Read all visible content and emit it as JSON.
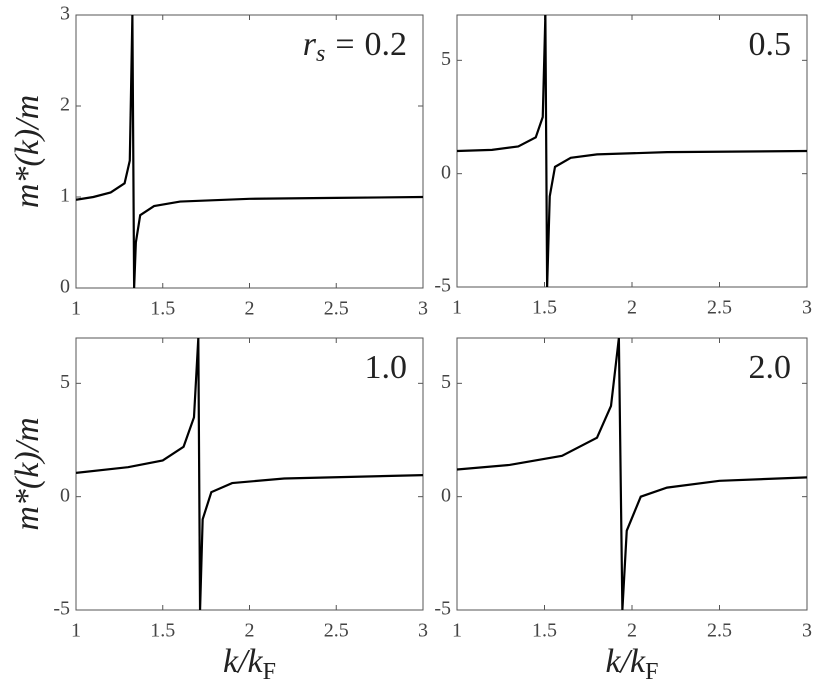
{
  "chart_data": [
    {
      "type": "line",
      "annotation_symbol": "r",
      "annotation_subscript": "s",
      "annotation_relation": "=",
      "annotation": "0.2",
      "ylabel": "m*(k)/m",
      "color": "#000000",
      "x": [
        1,
        1.1,
        1.2,
        1.28,
        1.31,
        1.325,
        1.335,
        1.345,
        1.37,
        1.45,
        1.6,
        2,
        2.5,
        3
      ],
      "values": [
        0.97,
        1.0,
        1.05,
        1.15,
        1.4,
        3,
        0,
        0.5,
        0.8,
        0.9,
        0.95,
        0.98,
        0.99,
        1.0
      ],
      "xlim": [
        1,
        3
      ],
      "xticks": [
        1,
        1.5,
        2,
        2.5,
        3
      ],
      "ylim": [
        0,
        3
      ],
      "yticks": [
        0,
        1,
        2,
        3
      ]
    },
    {
      "type": "line",
      "annotation": "0.5",
      "color": "#000000",
      "x": [
        1,
        1.2,
        1.35,
        1.45,
        1.49,
        1.505,
        1.515,
        1.53,
        1.56,
        1.65,
        1.8,
        2.2,
        3
      ],
      "values": [
        1.0,
        1.05,
        1.2,
        1.6,
        2.5,
        7,
        -5,
        -1,
        0.3,
        0.7,
        0.85,
        0.95,
        1.0
      ],
      "xlim": [
        1,
        3
      ],
      "xticks": [
        1,
        1.5,
        2,
        2.5,
        3
      ],
      "ylim": [
        -5,
        7
      ],
      "yticks": [
        -5,
        0,
        5
      ]
    },
    {
      "type": "line",
      "annotation": "1.0",
      "ylabel": "m*(k)/m",
      "xlabel": "k/k",
      "xlabel_subscript": "F",
      "color": "#000000",
      "x": [
        1,
        1.3,
        1.5,
        1.62,
        1.68,
        1.705,
        1.715,
        1.73,
        1.78,
        1.9,
        2.2,
        3
      ],
      "values": [
        1.05,
        1.3,
        1.6,
        2.2,
        3.5,
        7,
        -5,
        -1,
        0.2,
        0.6,
        0.8,
        0.95
      ],
      "xlim": [
        1,
        3
      ],
      "xticks": [
        1,
        1.5,
        2,
        2.5,
        3
      ],
      "ylim": [
        -5,
        7
      ],
      "yticks": [
        -5,
        0,
        5
      ]
    },
    {
      "type": "line",
      "annotation": "2.0",
      "xlabel": "k/k",
      "xlabel_subscript": "F",
      "color": "#000000",
      "x": [
        1,
        1.3,
        1.6,
        1.8,
        1.88,
        1.925,
        1.945,
        1.97,
        2.05,
        2.2,
        2.5,
        3
      ],
      "values": [
        1.2,
        1.4,
        1.8,
        2.6,
        4,
        7,
        -5,
        -1.5,
        0,
        0.4,
        0.7,
        0.85
      ],
      "xlim": [
        1,
        3
      ],
      "xticks": [
        1,
        1.5,
        2,
        2.5,
        3
      ],
      "ylim": [
        -5,
        7
      ],
      "yticks": [
        -5,
        0,
        5
      ]
    }
  ]
}
